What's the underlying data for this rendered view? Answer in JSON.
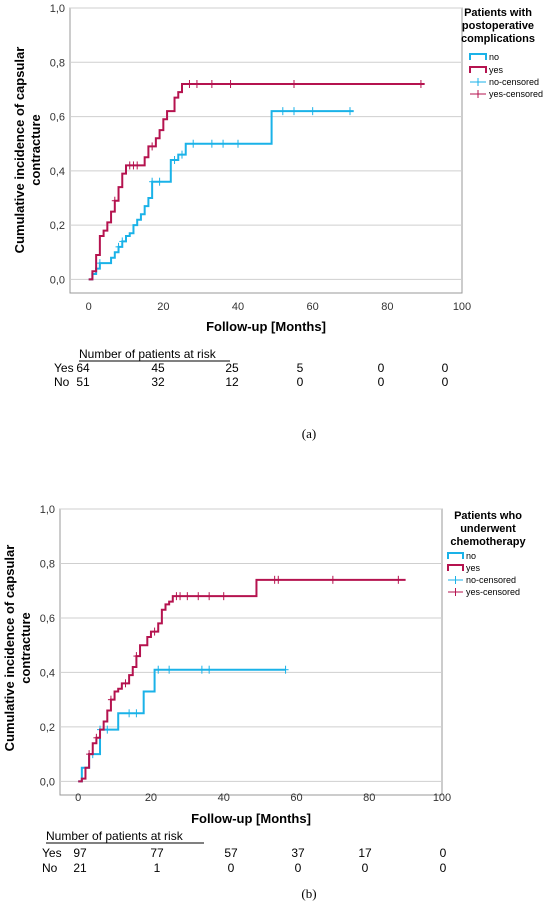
{
  "colors": {
    "no": "#1ab2e8",
    "yes": "#b5134f",
    "grid": "#cfcfcf",
    "frame": "#999999"
  },
  "chart_data": [
    {
      "type": "line",
      "caption": "(a)",
      "xlabel": "Follow-up [Months]",
      "ylabel_lines": [
        "Cumulative incidence of capsular",
        "contracture"
      ],
      "xlim": [
        -5,
        100
      ],
      "ylim": [
        -0.05,
        1.0
      ],
      "xticks": [
        0,
        20,
        40,
        60,
        80,
        100
      ],
      "yticks": [
        0.0,
        0.2,
        0.4,
        0.6,
        0.8,
        1.0
      ],
      "ytick_labels": [
        "0,0",
        "0,2",
        "0,4",
        "0,6",
        "0,8",
        "1,0"
      ],
      "grid": "horizontal",
      "legend": {
        "title_lines": [
          "Patients with",
          "postoperative",
          "complications"
        ],
        "placement": "top-right outside",
        "entries": [
          "no",
          "yes",
          "no-censored",
          "yes-censored"
        ]
      },
      "series": [
        {
          "name": "no",
          "step_x": [
            0,
            1,
            2,
            3,
            5,
            6,
            7,
            8,
            9,
            10,
            11,
            12,
            13,
            14,
            15,
            16,
            17,
            20,
            22,
            24,
            26,
            28,
            49,
            71
          ],
          "step_y": [
            0.0,
            0.02,
            0.04,
            0.06,
            0.06,
            0.08,
            0.1,
            0.12,
            0.14,
            0.16,
            0.17,
            0.2,
            0.22,
            0.24,
            0.27,
            0.3,
            0.36,
            0.36,
            0.44,
            0.46,
            0.5,
            0.5,
            0.62,
            0.62
          ],
          "censored_x": [
            3,
            8,
            9,
            17,
            19,
            23,
            25,
            28,
            33,
            36,
            40,
            52,
            55,
            60,
            70
          ],
          "censored_y": [
            0.06,
            0.12,
            0.14,
            0.36,
            0.36,
            0.44,
            0.46,
            0.5,
            0.5,
            0.5,
            0.5,
            0.62,
            0.62,
            0.62,
            0.62
          ]
        },
        {
          "name": "yes",
          "step_x": [
            0,
            1,
            2,
            3,
            4,
            5,
            6,
            7,
            8,
            9,
            10,
            14,
            15,
            16,
            18,
            19,
            20,
            21,
            23,
            24,
            25,
            90
          ],
          "step_y": [
            0.0,
            0.03,
            0.09,
            0.16,
            0.18,
            0.21,
            0.25,
            0.29,
            0.34,
            0.39,
            0.42,
            0.42,
            0.45,
            0.49,
            0.52,
            0.55,
            0.59,
            0.62,
            0.67,
            0.69,
            0.72,
            0.72
          ],
          "censored_x": [
            7,
            11,
            12,
            13,
            17,
            27,
            29,
            33,
            38,
            55,
            89
          ],
          "censored_y": [
            0.29,
            0.42,
            0.42,
            0.42,
            0.49,
            0.72,
            0.72,
            0.72,
            0.72,
            0.72,
            0.72
          ]
        }
      ],
      "risk_table": {
        "title": "Number  of patients at risk",
        "rows": [
          {
            "label": "Yes",
            "values": [
              "64",
              "45",
              "25",
              "5",
              "0",
              "0"
            ]
          },
          {
            "label": "No",
            "values": [
              "51",
              "32",
              "12",
              "0",
              "0",
              "0"
            ]
          }
        ]
      }
    },
    {
      "type": "line",
      "caption": "(b)",
      "xlabel": "Follow-up [Months]",
      "ylabel_lines": [
        "Cumulative incidence of capsular",
        "contracture"
      ],
      "xlim": [
        -5,
        100
      ],
      "ylim": [
        -0.05,
        1.0
      ],
      "xticks": [
        0,
        20,
        40,
        60,
        80,
        100
      ],
      "yticks": [
        0.0,
        0.2,
        0.4,
        0.6,
        0.8,
        1.0
      ],
      "ytick_labels": [
        "0,0",
        "0,2",
        "0,4",
        "0,6",
        "0,8",
        "1,0"
      ],
      "grid": "horizontal",
      "legend": {
        "title_lines": [
          "Patients who",
          "underwent",
          "chemotherapy"
        ],
        "placement": "top-right outside",
        "entries": [
          "no",
          "yes",
          "no-censored",
          "yes-censored"
        ]
      },
      "series": [
        {
          "name": "no",
          "step_x": [
            0,
            1,
            3,
            6,
            11,
            18,
            20,
            21,
            57
          ],
          "step_y": [
            0.0,
            0.05,
            0.1,
            0.19,
            0.25,
            0.33,
            0.33,
            0.41,
            0.41
          ],
          "censored_x": [
            4,
            6,
            8,
            14,
            16,
            22,
            25,
            34,
            36,
            57
          ],
          "censored_y": [
            0.1,
            0.19,
            0.19,
            0.25,
            0.25,
            0.41,
            0.41,
            0.41,
            0.41,
            0.41
          ]
        },
        {
          "name": "yes",
          "step_x": [
            0,
            1,
            2,
            3,
            4,
            5,
            6,
            7,
            8,
            9,
            10,
            11,
            12,
            14,
            15,
            16,
            17,
            19,
            20,
            22,
            23,
            24,
            25,
            26,
            49,
            90
          ],
          "step_y": [
            0.0,
            0.01,
            0.05,
            0.1,
            0.14,
            0.16,
            0.19,
            0.22,
            0.26,
            0.3,
            0.33,
            0.34,
            0.36,
            0.39,
            0.42,
            0.46,
            0.5,
            0.53,
            0.55,
            0.58,
            0.63,
            0.65,
            0.66,
            0.68,
            0.74,
            0.74
          ],
          "censored_x": [
            3,
            5,
            9,
            13,
            16,
            21,
            27,
            28,
            30,
            33,
            36,
            40,
            54,
            55,
            70,
            88
          ],
          "censored_y": [
            0.1,
            0.16,
            0.3,
            0.36,
            0.46,
            0.55,
            0.68,
            0.68,
            0.68,
            0.68,
            0.68,
            0.68,
            0.74,
            0.74,
            0.74,
            0.74
          ]
        }
      ],
      "risk_table": {
        "title": "Number of patients at risk",
        "rows": [
          {
            "label": "Yes",
            "values": [
              "97",
              "77",
              "57",
              "37",
              "17",
              "0"
            ]
          },
          {
            "label": "No",
            "values": [
              "21",
              "1",
              "0",
              "0",
              "0",
              "0"
            ]
          }
        ]
      }
    }
  ]
}
